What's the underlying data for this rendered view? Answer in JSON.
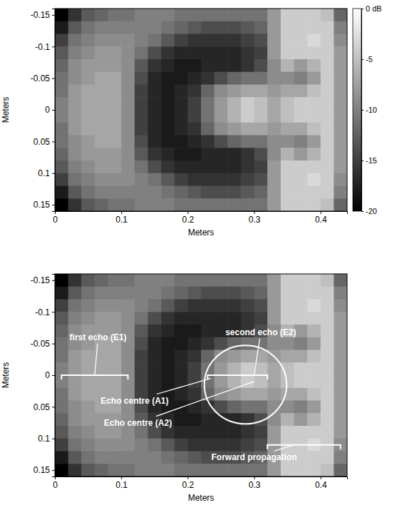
{
  "chart_data": [
    {
      "type": "heatmap",
      "xlabel": "Meters",
      "ylabel": "Meters",
      "x": [
        0.01,
        0.03,
        0.05,
        0.07,
        0.09,
        0.11,
        0.13,
        0.15,
        0.17,
        0.19,
        0.21,
        0.23,
        0.25,
        0.27,
        0.29,
        0.31,
        0.33,
        0.35,
        0.37,
        0.39,
        0.41,
        0.43
      ],
      "y": [
        -0.15,
        -0.13,
        -0.11,
        -0.09,
        -0.07,
        -0.05,
        -0.03,
        -0.01,
        0.01,
        0.03,
        0.05,
        0.07,
        0.09,
        0.11,
        0.13,
        0.15
      ],
      "values": [
        [
          -20,
          -16,
          -13,
          -12,
          -11,
          -11,
          -10,
          -10,
          -10,
          -11,
          -11,
          -11,
          -11,
          -11,
          -11,
          -11,
          -8,
          -4,
          -4,
          -4,
          -5,
          -12
        ],
        [
          -18,
          -13,
          -11,
          -10,
          -10,
          -10,
          -10,
          -10,
          -11,
          -12,
          -13,
          -14,
          -14,
          -14,
          -13,
          -12,
          -8,
          -4,
          -4,
          -4,
          -4,
          -10
        ],
        [
          -15,
          -11,
          -10,
          -9,
          -9,
          -9,
          -10,
          -11,
          -13,
          -15,
          -16,
          -16,
          -16,
          -16,
          -15,
          -14,
          -8,
          -4,
          -4,
          -3,
          -4,
          -9
        ],
        [
          -13,
          -10,
          -9,
          -8,
          -8,
          -9,
          -11,
          -14,
          -16,
          -17,
          -17,
          -17,
          -17,
          -17,
          -16,
          -15,
          -8,
          -4,
          -4,
          -4,
          -4,
          -8
        ],
        [
          -12,
          -9,
          -8,
          -8,
          -8,
          -9,
          -13,
          -16,
          -17,
          -18,
          -18,
          -17,
          -17,
          -17,
          -16,
          -14,
          -9,
          -6,
          -8,
          -6,
          -4,
          -8
        ],
        [
          -11,
          -9,
          -8,
          -7,
          -7,
          -9,
          -14,
          -17,
          -18,
          -18,
          -17,
          -16,
          -14,
          -12,
          -11,
          -11,
          -9,
          -9,
          -10,
          -8,
          -4,
          -8
        ],
        [
          -11,
          -8,
          -7,
          -7,
          -7,
          -9,
          -15,
          -17,
          -18,
          -17,
          -16,
          -12,
          -9,
          -8,
          -7,
          -7,
          -8,
          -7,
          -7,
          -5,
          -4,
          -8
        ],
        [
          -10,
          -8,
          -7,
          -7,
          -7,
          -9,
          -15,
          -17,
          -18,
          -17,
          -15,
          -11,
          -8,
          -6,
          -4,
          -5,
          -7,
          -5,
          -4,
          -4,
          -4,
          -8
        ],
        [
          -10,
          -8,
          -7,
          -7,
          -7,
          -9,
          -15,
          -17,
          -18,
          -17,
          -15,
          -11,
          -8,
          -6,
          -4,
          -5,
          -7,
          -5,
          -4,
          -4,
          -4,
          -8
        ],
        [
          -11,
          -8,
          -7,
          -7,
          -7,
          -9,
          -15,
          -17,
          -18,
          -17,
          -16,
          -12,
          -9,
          -8,
          -7,
          -7,
          -8,
          -7,
          -7,
          -5,
          -4,
          -8
        ],
        [
          -11,
          -9,
          -8,
          -7,
          -7,
          -9,
          -14,
          -17,
          -18,
          -18,
          -17,
          -16,
          -14,
          -12,
          -11,
          -11,
          -9,
          -9,
          -10,
          -8,
          -4,
          -8
        ],
        [
          -12,
          -9,
          -8,
          -8,
          -8,
          -9,
          -13,
          -16,
          -17,
          -18,
          -18,
          -17,
          -17,
          -17,
          -16,
          -14,
          -9,
          -6,
          -8,
          -6,
          -4,
          -8
        ],
        [
          -13,
          -10,
          -9,
          -8,
          -8,
          -9,
          -11,
          -14,
          -16,
          -17,
          -17,
          -17,
          -17,
          -17,
          -16,
          -15,
          -8,
          -4,
          -4,
          -4,
          -4,
          -8
        ],
        [
          -15,
          -11,
          -10,
          -9,
          -9,
          -9,
          -10,
          -11,
          -13,
          -15,
          -16,
          -16,
          -16,
          -16,
          -15,
          -14,
          -8,
          -4,
          -4,
          -3,
          -4,
          -9
        ],
        [
          -18,
          -13,
          -11,
          -10,
          -10,
          -10,
          -10,
          -10,
          -11,
          -12,
          -13,
          -14,
          -14,
          -14,
          -13,
          -12,
          -8,
          -4,
          -4,
          -4,
          -4,
          -10
        ],
        [
          -20,
          -16,
          -13,
          -12,
          -11,
          -11,
          -10,
          -10,
          -10,
          -11,
          -11,
          -11,
          -11,
          -11,
          -11,
          -11,
          -8,
          -4,
          -4,
          -4,
          -5,
          -12
        ]
      ],
      "xlim": [
        0,
        0.44
      ],
      "ylim": [
        -0.16,
        0.16
      ],
      "xticks": [
        0,
        0.1,
        0.2,
        0.3,
        0.4
      ],
      "yticks": [
        -0.15,
        -0.1,
        -0.05,
        0,
        0.05,
        0.1,
        0.15
      ],
      "clim": [
        -20,
        0
      ],
      "cticks": [
        {
          "value": 0,
          "label": "0 dB"
        },
        -5,
        -10,
        -15,
        -20
      ]
    },
    {
      "type": "heatmap",
      "xlabel": "Meters",
      "ylabel": "Meters",
      "x": [
        0.01,
        0.03,
        0.05,
        0.07,
        0.09,
        0.11,
        0.13,
        0.15,
        0.17,
        0.19,
        0.21,
        0.23,
        0.25,
        0.27,
        0.29,
        0.31,
        0.33,
        0.35,
        0.37,
        0.39,
        0.41,
        0.43
      ],
      "y": [
        -0.15,
        -0.13,
        -0.11,
        -0.09,
        -0.07,
        -0.05,
        -0.03,
        -0.01,
        0.01,
        0.03,
        0.05,
        0.07,
        0.09,
        0.11,
        0.13,
        0.15
      ],
      "values": [
        [
          -20,
          -16,
          -13,
          -12,
          -11,
          -11,
          -10,
          -10,
          -10,
          -11,
          -11,
          -11,
          -11,
          -11,
          -11,
          -11,
          -8,
          -4,
          -4,
          -4,
          -5,
          -12
        ],
        [
          -18,
          -13,
          -11,
          -10,
          -10,
          -10,
          -10,
          -10,
          -11,
          -12,
          -13,
          -14,
          -14,
          -14,
          -13,
          -12,
          -8,
          -4,
          -4,
          -4,
          -4,
          -10
        ],
        [
          -15,
          -11,
          -10,
          -9,
          -9,
          -9,
          -10,
          -11,
          -13,
          -15,
          -16,
          -16,
          -16,
          -16,
          -15,
          -14,
          -8,
          -4,
          -4,
          -3,
          -4,
          -9
        ],
        [
          -13,
          -10,
          -9,
          -8,
          -8,
          -9,
          -11,
          -14,
          -16,
          -17,
          -17,
          -17,
          -17,
          -17,
          -16,
          -15,
          -8,
          -4,
          -4,
          -4,
          -4,
          -8
        ],
        [
          -12,
          -9,
          -8,
          -8,
          -8,
          -9,
          -13,
          -16,
          -17,
          -18,
          -18,
          -17,
          -17,
          -17,
          -16,
          -14,
          -9,
          -6,
          -8,
          -6,
          -4,
          -8
        ],
        [
          -11,
          -9,
          -8,
          -7,
          -7,
          -9,
          -14,
          -17,
          -18,
          -18,
          -17,
          -16,
          -14,
          -12,
          -11,
          -11,
          -9,
          -9,
          -10,
          -8,
          -4,
          -8
        ],
        [
          -11,
          -8,
          -7,
          -7,
          -7,
          -9,
          -15,
          -17,
          -18,
          -17,
          -16,
          -12,
          -9,
          -8,
          -7,
          -7,
          -8,
          -7,
          -7,
          -5,
          -4,
          -8
        ],
        [
          -10,
          -8,
          -7,
          -7,
          -7,
          -9,
          -15,
          -17,
          -18,
          -17,
          -15,
          -11,
          -8,
          -6,
          -4,
          -5,
          -7,
          -5,
          -4,
          -4,
          -4,
          -8
        ],
        [
          -10,
          -8,
          -7,
          -7,
          -7,
          -9,
          -15,
          -17,
          -18,
          -17,
          -15,
          -11,
          -8,
          -6,
          -4,
          -5,
          -7,
          -5,
          -4,
          -4,
          -4,
          -8
        ],
        [
          -11,
          -8,
          -7,
          -7,
          -7,
          -9,
          -15,
          -17,
          -18,
          -17,
          -16,
          -12,
          -9,
          -8,
          -7,
          -7,
          -8,
          -7,
          -7,
          -5,
          -4,
          -8
        ],
        [
          -11,
          -9,
          -8,
          -7,
          -7,
          -9,
          -14,
          -17,
          -18,
          -18,
          -17,
          -16,
          -14,
          -12,
          -11,
          -11,
          -9,
          -9,
          -10,
          -8,
          -4,
          -8
        ],
        [
          -12,
          -9,
          -8,
          -8,
          -8,
          -9,
          -13,
          -16,
          -17,
          -18,
          -18,
          -17,
          -17,
          -17,
          -16,
          -14,
          -9,
          -6,
          -8,
          -6,
          -4,
          -8
        ],
        [
          -13,
          -10,
          -9,
          -8,
          -8,
          -9,
          -11,
          -14,
          -16,
          -17,
          -17,
          -17,
          -17,
          -17,
          -16,
          -15,
          -8,
          -4,
          -4,
          -4,
          -4,
          -8
        ],
        [
          -15,
          -11,
          -10,
          -9,
          -9,
          -9,
          -10,
          -11,
          -13,
          -15,
          -16,
          -16,
          -16,
          -16,
          -15,
          -14,
          -8,
          -4,
          -4,
          -3,
          -4,
          -9
        ],
        [
          -18,
          -13,
          -11,
          -10,
          -10,
          -10,
          -10,
          -10,
          -11,
          -12,
          -13,
          -14,
          -14,
          -14,
          -13,
          -12,
          -8,
          -4,
          -4,
          -4,
          -4,
          -10
        ],
        [
          -20,
          -16,
          -13,
          -12,
          -11,
          -11,
          -10,
          -10,
          -10,
          -11,
          -11,
          -11,
          -11,
          -11,
          -11,
          -11,
          -8,
          -4,
          -4,
          -4,
          -5,
          -12
        ]
      ],
      "xlim": [
        0,
        0.44
      ],
      "ylim": [
        -0.16,
        0.16
      ],
      "xticks": [
        0,
        0.1,
        0.2,
        0.3,
        0.4
      ],
      "yticks": [
        -0.15,
        -0.1,
        -0.05,
        0,
        0.05,
        0.1,
        0.15
      ],
      "clim": [
        -20,
        0
      ],
      "annotations": [
        {
          "text": "first echo (E1)",
          "x": 0.06,
          "y": 0.0,
          "label_x": 0.065,
          "label_y": -0.06
        },
        {
          "text": "second echo (E2)",
          "x": 0.3,
          "y": 0.0,
          "label_x": 0.31,
          "label_y": -0.068
        },
        {
          "text": "Echo centre (A1)",
          "x": 0.235,
          "y": 0.005,
          "label_x": 0.12,
          "label_y": 0.04
        },
        {
          "text": "Echo centre (A2)",
          "x": 0.3,
          "y": 0.01,
          "label_x": 0.125,
          "label_y": 0.075
        },
        {
          "text": "Forward propagation",
          "x": 0.36,
          "y": 0.11,
          "label_x": 0.3,
          "label_y": 0.13
        }
      ],
      "brackets": [
        {
          "x0": 0.01,
          "x1": 0.11,
          "y": 0.0
        },
        {
          "x0": 0.23,
          "x1": 0.32,
          "y": 0.0
        },
        {
          "x0": 0.32,
          "x1": 0.43,
          "y": 0.11
        }
      ],
      "circle": {
        "x": 0.287,
        "y": 0.015,
        "r": 0.062
      }
    }
  ]
}
